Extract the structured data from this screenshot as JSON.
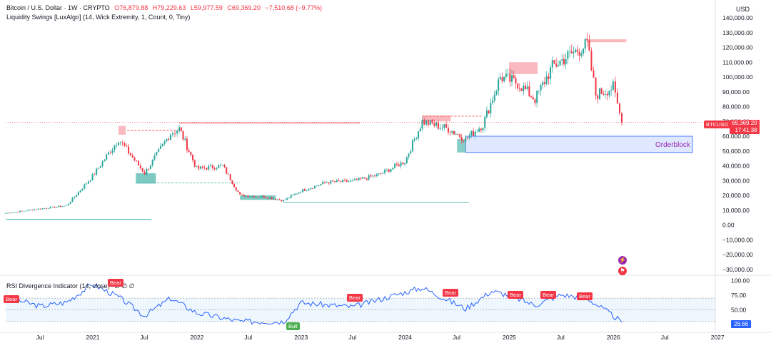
{
  "header": {
    "symbol": "Bitcoin / U.S. Dollar · 1W · CRYPTO",
    "open": "O76,879.88",
    "high": "H79,229.63",
    "low": "L59,977.59",
    "close": "C69,369.20",
    "change": "−7,510.68 (−9.77%)",
    "indicator": "Liquidity Swings [LuxAlgo] (14, Wick Extremity, 1, Count, 0, Tiny)",
    "currency": "USD"
  },
  "price_axis": {
    "labels": [
      "140,000.00",
      "130,000.00",
      "120,000.00",
      "110,000.00",
      "100,000.00",
      "90,000.00",
      "80,000.00",
      "70,000.00",
      "60,000.00",
      "50,000.00",
      "40,000.00",
      "30,000.00",
      "20,000.00",
      "10,000.00",
      "0.00",
      "−10,000.00",
      "−20,000.00",
      "−30,000.00"
    ],
    "last_price": "69,369.20",
    "countdown": "17:41:38",
    "symbol_tag": "BTCUSD"
  },
  "time_axis": [
    "Jul",
    "2021",
    "Jul",
    "2022",
    "Jul",
    "2023",
    "Jul",
    "2024",
    "Jul",
    "2025",
    "Jul",
    "2026",
    "Jul",
    "2027"
  ],
  "annotations": {
    "orderblock": "Orderblock"
  },
  "rsi": {
    "title": "RSI Divergence Indicator (14, close)",
    "extra": "∅ ∅ ∅",
    "axis": [
      "100.00",
      "75.00",
      "50.00",
      "25.00"
    ],
    "value": "28.66",
    "bear_label": "Bear",
    "bull_label": "Bull"
  },
  "colors": {
    "up": "#26a69a",
    "down": "#f23645",
    "rsi": "#2962ff",
    "orderblock": "#2962ff"
  },
  "chart_data": [
    {
      "type": "candlestick",
      "title": "Bitcoin / U.S. Dollar · 1W · CRYPTO",
      "x_period": "weekly",
      "x_range": [
        "2020-03",
        "2026-02"
      ],
      "ylim": [
        -30000,
        140000
      ],
      "grid": false,
      "series": [
        {
          "name": "BTCUSD",
          "x": [
            "2020-03",
            "2020-07",
            "2020-10",
            "2021-01",
            "2021-04",
            "2021-07",
            "2021-10",
            "2021-11",
            "2022-01",
            "2022-04",
            "2022-06",
            "2022-09",
            "2022-11",
            "2023-01",
            "2023-04",
            "2023-07",
            "2023-10",
            "2024-01",
            "2024-03",
            "2024-06",
            "2024-08",
            "2024-10",
            "2024-12",
            "2025-02",
            "2025-04",
            "2025-06",
            "2025-08",
            "2025-10",
            "2025-11",
            "2026-01",
            "2026-02"
          ],
          "values": [
            8000,
            11000,
            13000,
            33000,
            58000,
            35000,
            62000,
            65000,
            38000,
            40000,
            20000,
            19000,
            16500,
            23000,
            29000,
            29500,
            34000,
            43000,
            70000,
            65000,
            58000,
            68000,
            100000,
            96000,
            85000,
            107000,
            115000,
            122000,
            88000,
            93000,
            69369.2
          ]
        }
      ],
      "levels": [
        {
          "name": "Orderblock",
          "from": 49000,
          "to": 60000
        }
      ]
    },
    {
      "type": "line",
      "title": "RSI Divergence Indicator (14, close)",
      "ylim": [
        15,
        100
      ],
      "reference_lines": [
        70,
        50,
        30
      ],
      "series": [
        {
          "name": "RSI",
          "x": [
            "2020-03",
            "2020-07",
            "2020-10",
            "2021-01",
            "2021-04",
            "2021-07",
            "2021-10",
            "2022-01",
            "2022-06",
            "2022-11",
            "2023-01",
            "2023-07",
            "2024-01",
            "2024-03",
            "2024-08",
            "2024-11",
            "2025-01",
            "2025-04",
            "2025-07",
            "2025-10",
            "2026-01",
            "2026-02"
          ],
          "values": [
            72,
            56,
            63,
            94,
            72,
            40,
            70,
            45,
            30,
            30,
            62,
            55,
            80,
            88,
            52,
            82,
            75,
            58,
            76,
            70,
            40,
            28.66
          ]
        }
      ],
      "signals": [
        {
          "label": "Bear",
          "x": "2020-03"
        },
        {
          "label": "Bear",
          "x": "2021-02"
        },
        {
          "label": "Bull",
          "x": "2022-11"
        },
        {
          "label": "Bear",
          "x": "2023-07"
        },
        {
          "label": "Bear",
          "x": "2024-04"
        },
        {
          "label": "Bear",
          "x": "2024-12"
        },
        {
          "label": "Bear",
          "x": "2025-05"
        },
        {
          "label": "Bear",
          "x": "2025-09"
        }
      ]
    }
  ]
}
